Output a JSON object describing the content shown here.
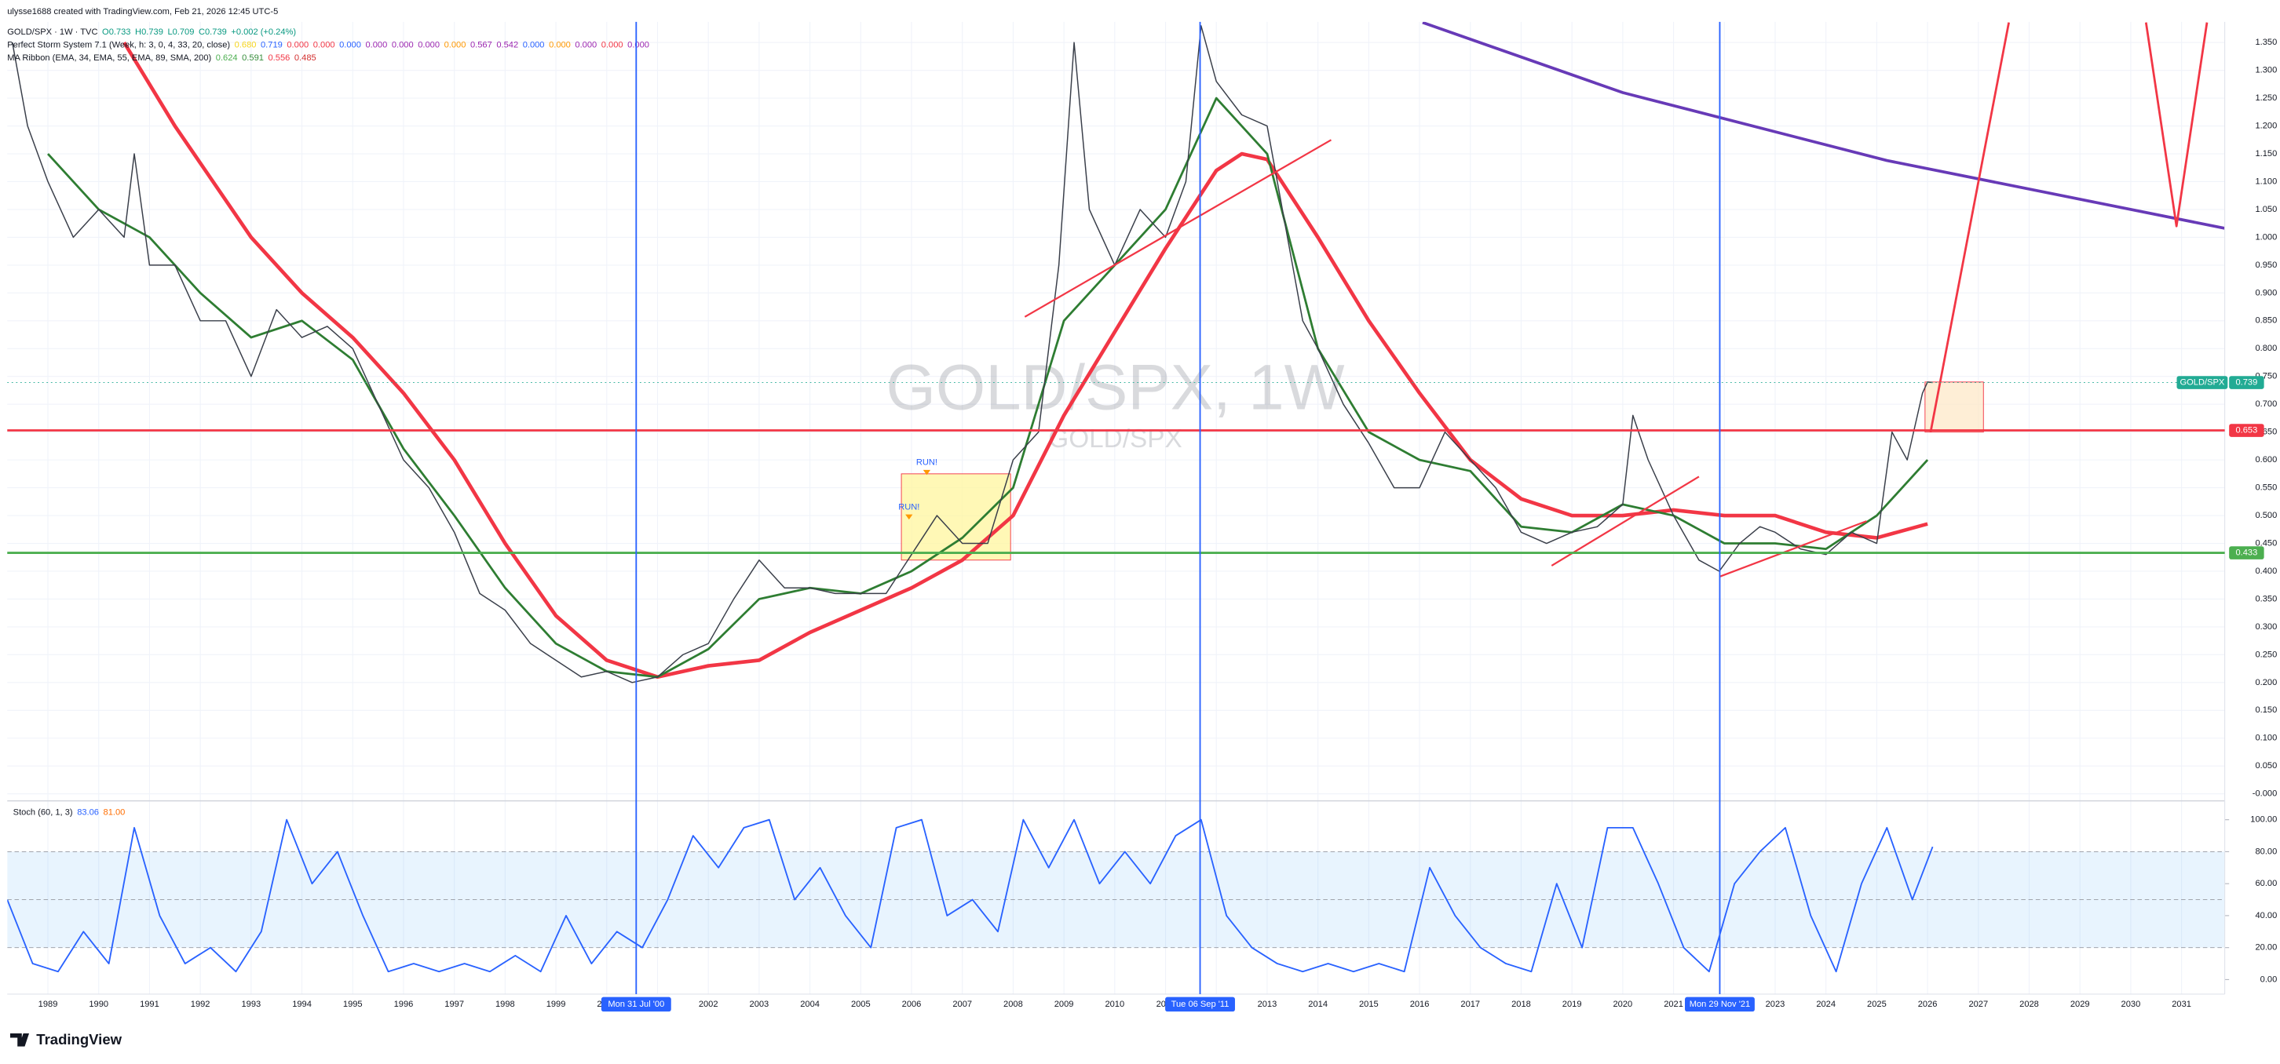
{
  "header": {
    "credit": "ulysse1688 created with TradingView.com, Feb 21, 2026 12:45 UTC-5"
  },
  "legends": [
    [
      {
        "text": "GOLD/SPX · 1W · TVC",
        "color": "#131722"
      },
      {
        "text": "O0.733",
        "color": "#089981"
      },
      {
        "text": "H0.739",
        "color": "#089981"
      },
      {
        "text": "L0.709",
        "color": "#089981"
      },
      {
        "text": "C0.739",
        "color": "#089981"
      },
      {
        "text": "+0.002 (+0.24%)",
        "color": "#089981"
      }
    ],
    [
      {
        "text": "Perfect Storm System 7.1 (Week, h: 3, 0, 4, 33, 20, close)",
        "color": "#131722"
      },
      {
        "text": "0.680",
        "color": "#f7d51c"
      },
      {
        "text": "0.719",
        "color": "#2962ff"
      },
      {
        "text": "0.000",
        "color": "#f23645"
      },
      {
        "text": "0.000",
        "color": "#f23645"
      },
      {
        "text": "0.000",
        "color": "#2962ff"
      },
      {
        "text": "0.000",
        "color": "#9c27b0"
      },
      {
        "text": "0.000",
        "color": "#9c27b0"
      },
      {
        "text": "0.000",
        "color": "#9c27b0"
      },
      {
        "text": "0.000",
        "color": "#ff9800"
      },
      {
        "text": "0.567",
        "color": "#9c27b0"
      },
      {
        "text": "0.542",
        "color": "#9c27b0"
      },
      {
        "text": "0.000",
        "color": "#2962ff"
      },
      {
        "text": "0.000",
        "color": "#ff9800"
      },
      {
        "text": "0.000",
        "color": "#9c27b0"
      },
      {
        "text": "0.000",
        "color": "#f23645"
      },
      {
        "text": "0.000",
        "color": "#9c27b0"
      }
    ],
    [
      {
        "text": "MA Ribbon (EMA, 34, EMA, 55, EMA, 89, SMA, 200)",
        "color": "#131722"
      },
      {
        "text": "0.624",
        "color": "#4caf50"
      },
      {
        "text": "0.591",
        "color": "#388e3c"
      },
      {
        "text": "0.556",
        "color": "#f23645"
      },
      {
        "text": "0.485",
        "color": "#d32f2f"
      }
    ]
  ],
  "chart_data": [
    {
      "type": "line",
      "watermark": "GOLD/SPX, 1W",
      "subtitle": "GOLD/SPX",
      "xlim": [
        1988.2,
        2031.85
      ],
      "xticks": [
        1989,
        1990,
        1991,
        1992,
        1993,
        1994,
        1995,
        1996,
        1997,
        1998,
        1999,
        2000,
        2001,
        2002,
        2003,
        2004,
        2005,
        2006,
        2007,
        2008,
        2009,
        2010,
        2011,
        2012,
        2013,
        2014,
        2015,
        2016,
        2017,
        2018,
        2019,
        2020,
        2021,
        2022,
        2023,
        2024,
        2025,
        2026,
        2027,
        2028,
        2029,
        2030,
        2031
      ],
      "ylim": [
        -0.01,
        1.387
      ],
      "yticks": [
        {
          "value": 0,
          "label": "-0.000"
        },
        {
          "value": 0.05,
          "label": "0.050"
        },
        {
          "value": 0.1,
          "label": "0.100"
        },
        {
          "value": 0.15,
          "label": "0.150"
        },
        {
          "value": 0.2,
          "label": "0.200"
        },
        {
          "value": 0.25,
          "label": "0.250"
        },
        {
          "value": 0.3,
          "label": "0.300"
        },
        {
          "value": 0.35,
          "label": "0.350"
        },
        {
          "value": 0.4,
          "label": "0.400"
        },
        {
          "value": 0.45,
          "label": "0.450"
        },
        {
          "value": 0.5,
          "label": "0.500"
        },
        {
          "value": 0.55,
          "label": "0.550"
        },
        {
          "value": 0.6,
          "label": "0.600"
        },
        {
          "value": 0.65,
          "label": "0.650"
        },
        {
          "value": 0.7,
          "label": "0.700"
        },
        {
          "value": 0.75,
          "label": "0.750"
        },
        {
          "value": 0.8,
          "label": "0.800"
        },
        {
          "value": 0.85,
          "label": "0.850"
        },
        {
          "value": 0.9,
          "label": "0.900"
        },
        {
          "value": 0.95,
          "label": "0.950"
        },
        {
          "value": 1.0,
          "label": "1.000"
        },
        {
          "value": 1.05,
          "label": "1.050"
        },
        {
          "value": 1.1,
          "label": "1.100"
        },
        {
          "value": 1.15,
          "label": "1.150"
        },
        {
          "value": 1.2,
          "label": "1.200"
        },
        {
          "value": 1.25,
          "label": "1.250"
        },
        {
          "value": 1.3,
          "label": "1.300"
        },
        {
          "value": 1.35,
          "label": "1.350"
        }
      ],
      "grid": true,
      "boxes": [
        {
          "x": [
            2005.8,
            2007.95
          ],
          "y": [
            0.42,
            0.575
          ],
          "color": "#fff59d"
        },
        {
          "x": [
            2025.95,
            2027.1
          ],
          "y": [
            0.65,
            0.74
          ],
          "color": "#fde8c8"
        }
      ],
      "series": [
        {
          "color": "#f23645",
          "width": 2.5,
          "x": [
            1990.5,
            1991.5,
            1993,
            1994,
            1995,
            1996,
            1997,
            1998,
            1999,
            2000,
            2001,
            2002,
            2003,
            2004,
            2005,
            2006,
            2007,
            2008,
            2009,
            2010,
            2011,
            2012,
            2012.5,
            2013,
            2014,
            2015,
            2016,
            2017,
            2018,
            2019,
            2020,
            2021,
            2022,
            2023,
            2024,
            2025,
            2026
          ],
          "values": [
            1.35,
            1.2,
            1.0,
            0.9,
            0.82,
            0.72,
            0.6,
            0.45,
            0.32,
            0.24,
            0.21,
            0.23,
            0.24,
            0.29,
            0.33,
            0.37,
            0.42,
            0.5,
            0.68,
            0.83,
            0.98,
            1.12,
            1.15,
            1.14,
            1.0,
            0.85,
            0.72,
            0.6,
            0.53,
            0.5,
            0.5,
            0.51,
            0.5,
            0.5,
            0.47,
            0.46,
            0.485
          ]
        },
        {
          "color": "#2e7d32",
          "width": 1.5,
          "x": [
            1989,
            1990,
            1991,
            1992,
            1993,
            1994,
            1995,
            1996,
            1997,
            1998,
            1999,
            2000,
            2001,
            2002,
            2003,
            2004,
            2005,
            2006,
            2007,
            2008,
            2009,
            2010,
            2011,
            2012,
            2013,
            2014,
            2015,
            2016,
            2017,
            2018,
            2019,
            2020,
            2021,
            2022,
            2023,
            2024,
            2025,
            2026
          ],
          "values": [
            1.15,
            1.05,
            1.0,
            0.9,
            0.82,
            0.85,
            0.78,
            0.62,
            0.5,
            0.37,
            0.27,
            0.22,
            0.21,
            0.26,
            0.35,
            0.37,
            0.36,
            0.4,
            0.46,
            0.55,
            0.85,
            0.95,
            1.05,
            1.25,
            1.15,
            0.8,
            0.65,
            0.6,
            0.58,
            0.48,
            0.47,
            0.52,
            0.5,
            0.45,
            0.45,
            0.44,
            0.5,
            0.6
          ]
        },
        {
          "name": "GOLD/SPX",
          "color": "#3a3f4a",
          "width": 0.8,
          "x": [
            1988.3,
            1988.6,
            1989.0,
            1989.5,
            1990.0,
            1990.5,
            1990.7,
            1991.0,
            1991.5,
            1992.0,
            1992.5,
            1993.0,
            1993.5,
            1994.0,
            1994.5,
            1995.0,
            1995.5,
            1996.0,
            1996.5,
            1997.0,
            1997.5,
            1998.0,
            1998.5,
            1999.0,
            1999.5,
            2000.0,
            2000.5,
            2001.0,
            2001.5,
            2002.0,
            2002.5,
            2003.0,
            2003.5,
            2004.0,
            2004.5,
            2005.0,
            2005.5,
            2006.0,
            2006.5,
            2007.0,
            2007.5,
            2008.0,
            2008.5,
            2008.9,
            2009.2,
            2009.5,
            2010.0,
            2010.5,
            2011.0,
            2011.4,
            2011.7,
            2012.0,
            2012.5,
            2013.0,
            2013.3,
            2013.7,
            2014.0,
            2014.5,
            2015.0,
            2015.5,
            2016.0,
            2016.5,
            2017.0,
            2017.5,
            2018.0,
            2018.5,
            2019.0,
            2019.5,
            2020.0,
            2020.2,
            2020.5,
            2021.0,
            2021.5,
            2021.9,
            2022.3,
            2022.7,
            2023.0,
            2023.5,
            2024.0,
            2024.5,
            2025.0,
            2025.3,
            2025.6,
            2025.9,
            2026.0,
            2026.1
          ],
          "values": [
            1.35,
            1.2,
            1.1,
            1.0,
            1.05,
            1.0,
            1.15,
            0.95,
            0.95,
            0.85,
            0.85,
            0.75,
            0.87,
            0.82,
            0.84,
            0.8,
            0.7,
            0.6,
            0.55,
            0.47,
            0.36,
            0.33,
            0.27,
            0.24,
            0.21,
            0.22,
            0.2,
            0.21,
            0.25,
            0.27,
            0.35,
            0.42,
            0.37,
            0.37,
            0.36,
            0.36,
            0.36,
            0.43,
            0.5,
            0.45,
            0.45,
            0.6,
            0.65,
            0.95,
            1.35,
            1.05,
            0.95,
            1.05,
            1.0,
            1.1,
            1.38,
            1.28,
            1.22,
            1.2,
            1.05,
            0.85,
            0.8,
            0.7,
            0.63,
            0.55,
            0.55,
            0.65,
            0.6,
            0.55,
            0.47,
            0.45,
            0.47,
            0.48,
            0.52,
            0.68,
            0.6,
            0.5,
            0.42,
            0.4,
            0.45,
            0.48,
            0.47,
            0.44,
            0.43,
            0.47,
            0.45,
            0.65,
            0.6,
            0.72,
            0.74,
            0.739
          ]
        },
        {
          "color": "#673ab7",
          "width": 2,
          "x": [
            2016.06,
            2020.0,
            2025.2,
            2031.86
          ],
          "values": [
            1.386,
            1.26,
            1.138,
            1.016
          ]
        },
        {
          "color": "#f23645",
          "width": 1.5,
          "x": [
            2026.06,
            2027.6
          ],
          "values": [
            0.65,
            1.386
          ]
        },
        {
          "color": "#f23645",
          "width": 1.5,
          "x": [
            2030.3,
            2030.9,
            2031.5
          ],
          "values": [
            1.386,
            1.02,
            1.386
          ]
        },
        {
          "color": "#f23645",
          "width": 1.2,
          "x": [
            2008.23,
            2014.26
          ],
          "values": [
            0.857,
            1.175
          ]
        },
        {
          "color": "#f23645",
          "width": 1.2,
          "x": [
            2021.9,
            2024.8
          ],
          "values": [
            0.39,
            0.49
          ]
        },
        {
          "color": "#f23645",
          "width": 1.2,
          "x": [
            2018.6,
            2021.5
          ],
          "values": [
            0.41,
            0.57
          ]
        }
      ],
      "levels": [
        {
          "value": 0.653,
          "color": "#f23645"
        },
        {
          "value": 0.433,
          "color": "#4caf50"
        }
      ],
      "price_tag": {
        "name": "GOLD/SPX",
        "value": 0.739,
        "color": "#22ab94"
      },
      "annotations": [
        {
          "text": "RUN!",
          "x": 2006.3,
          "y": 0.595,
          "color": "#2962ff"
        },
        {
          "text": "RUN!",
          "x": 2005.95,
          "y": 0.515,
          "color": "#2962ff"
        }
      ],
      "markers": [
        {
          "x": 2000.58,
          "label": "Mon 31 Jul '00"
        },
        {
          "x": 2011.68,
          "label": "Tue 06 Sep '11"
        },
        {
          "x": 2021.91,
          "label": "Mon 29 Nov '21"
        }
      ]
    },
    {
      "type": "line",
      "title": "Stoch (60, 1, 3)",
      "title_values": [
        {
          "text": "83.06",
          "color": "#2962ff"
        },
        {
          "text": "81.00",
          "color": "#ff6d00"
        }
      ],
      "ylim": [
        -9.1,
        110.9
      ],
      "yticks": [
        {
          "value": 0,
          "label": "0.00"
        },
        {
          "value": 20,
          "label": "20.00"
        },
        {
          "value": 40,
          "label": "40.00"
        },
        {
          "value": 60,
          "label": "60.00"
        },
        {
          "value": 80,
          "label": "80.00"
        },
        {
          "value": 100,
          "label": "100.00"
        }
      ],
      "band": [
        20,
        80
      ],
      "levels": [
        20,
        50,
        80
      ],
      "series": [
        {
          "color": "#2962ff",
          "width": 1,
          "x": [
            1988.2,
            1988.7,
            1989.2,
            1989.7,
            1990.2,
            1990.7,
            1991.2,
            1991.7,
            1992.2,
            1992.7,
            1993.2,
            1993.7,
            1994.2,
            1994.7,
            1995.2,
            1995.7,
            1996.2,
            1996.7,
            1997.2,
            1997.7,
            1998.2,
            1998.7,
            1999.2,
            1999.7,
            2000.2,
            2000.7,
            2001.2,
            2001.7,
            2002.2,
            2002.7,
            2003.2,
            2003.7,
            2004.2,
            2004.7,
            2005.2,
            2005.7,
            2006.2,
            2006.7,
            2007.2,
            2007.7,
            2008.2,
            2008.7,
            2009.2,
            2009.7,
            2010.2,
            2010.7,
            2011.2,
            2011.7,
            2012.2,
            2012.7,
            2013.2,
            2013.7,
            2014.2,
            2014.7,
            2015.2,
            2015.7,
            2016.2,
            2016.7,
            2017.2,
            2017.7,
            2018.2,
            2018.7,
            2019.2,
            2019.7,
            2020.2,
            2020.7,
            2021.2,
            2021.7,
            2022.2,
            2022.7,
            2023.2,
            2023.7,
            2024.2,
            2024.7,
            2025.2,
            2025.7,
            2026.1
          ],
          "values": [
            50,
            10,
            5,
            30,
            10,
            95,
            40,
            10,
            20,
            5,
            30,
            100,
            60,
            80,
            40,
            5,
            10,
            5,
            10,
            5,
            15,
            5,
            40,
            10,
            30,
            20,
            50,
            90,
            70,
            95,
            100,
            50,
            70,
            40,
            20,
            95,
            100,
            40,
            50,
            30,
            100,
            70,
            100,
            60,
            80,
            60,
            90,
            100,
            40,
            20,
            10,
            5,
            10,
            5,
            10,
            5,
            70,
            40,
            20,
            10,
            5,
            60,
            20,
            95,
            95,
            60,
            20,
            5,
            60,
            80,
            95,
            40,
            5,
            60,
            95,
            50,
            83.06
          ]
        }
      ]
    }
  ],
  "footer": {
    "brand": "TradingView"
  }
}
